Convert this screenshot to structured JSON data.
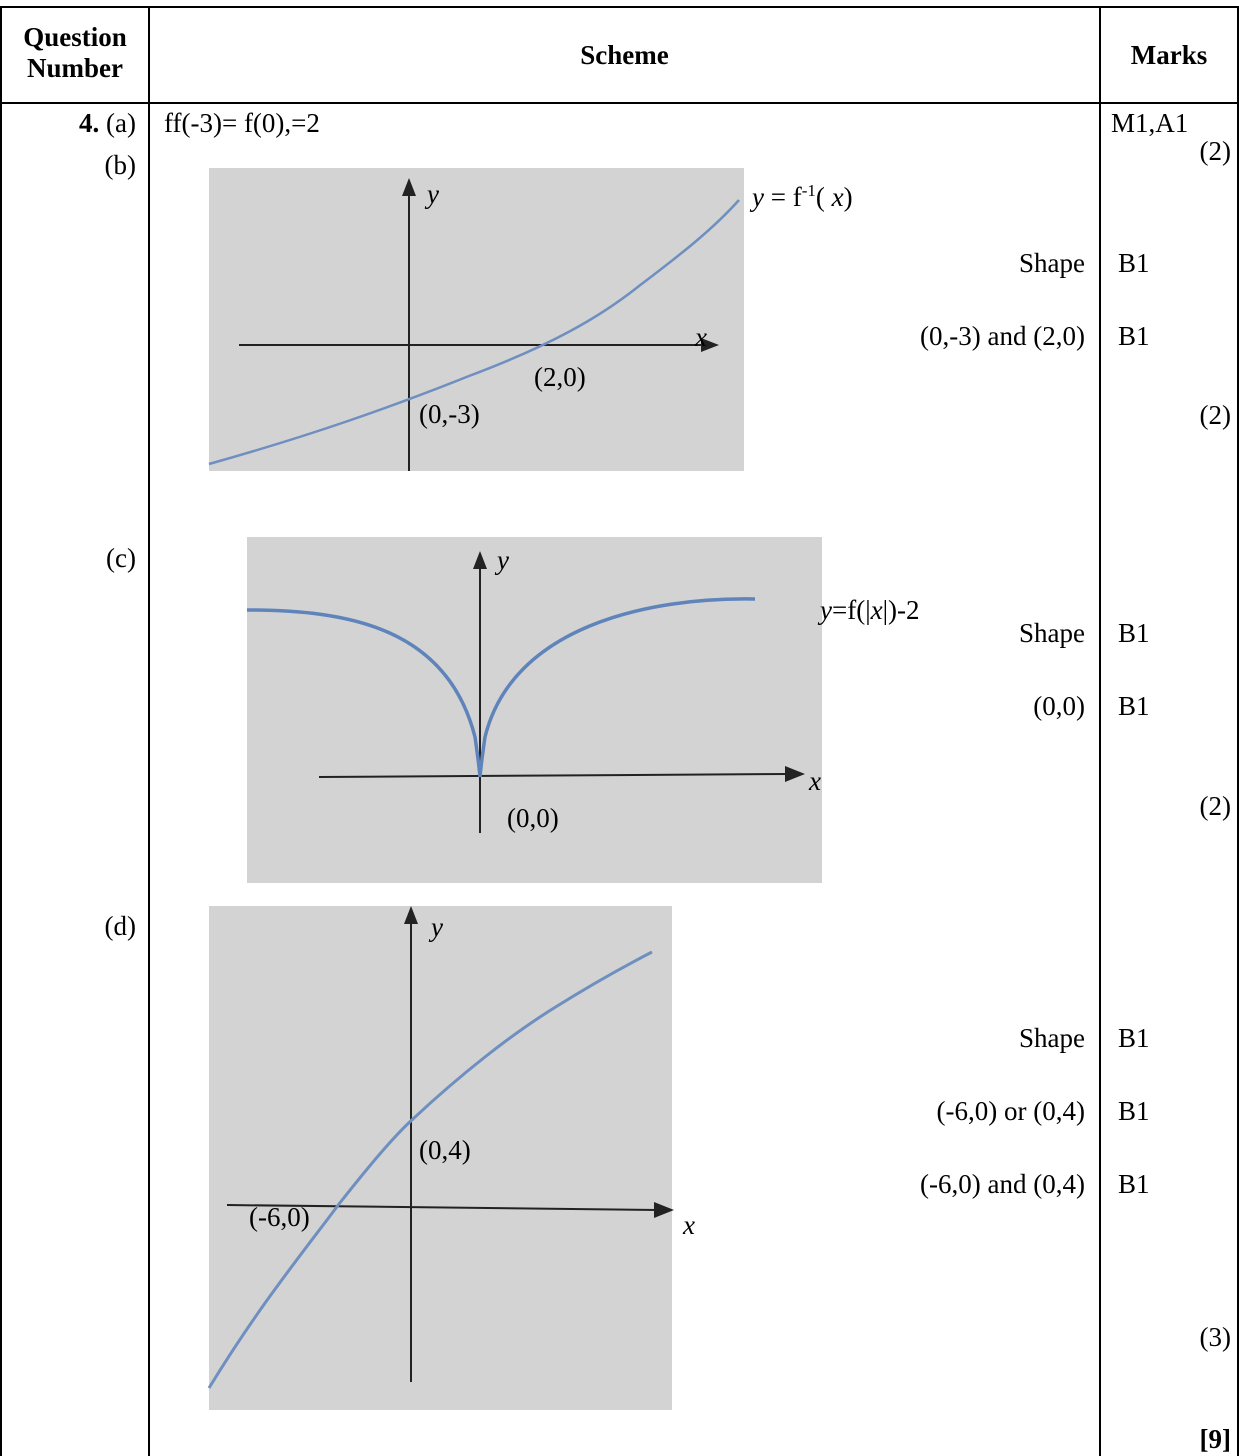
{
  "header": {
    "question_number": [
      "Question",
      "Number"
    ],
    "scheme": "Scheme",
    "marks": "Marks"
  },
  "q4": {
    "number": "4.",
    "parts": {
      "a": {
        "label": "(a)",
        "scheme": "ff(-3)= f(0),=2",
        "marks": "M1,A1",
        "total": "(2)"
      },
      "b": {
        "label": "(b)",
        "curve_label_y": "y",
        "curve_label_eq": " = f",
        "curve_label_sup": "-1",
        "curve_label_open": "( ",
        "curve_label_x": "x",
        "curve_label_close": ")",
        "axis_x": "x",
        "axis_y": "y",
        "point_1": "(2,0)",
        "point_2": "(0,-3)",
        "criteria": [
          {
            "text": "Shape",
            "mark": "B1"
          },
          {
            "text": "(0,-3) and (2,0)",
            "mark": "B1"
          }
        ],
        "total": "(2)"
      },
      "c": {
        "label": "(c)",
        "curve_label_y": "y",
        "curve_label_mid": "=f(|",
        "curve_label_x": "x",
        "curve_label_end": "|)-2",
        "axis_x": "x",
        "axis_y": "y",
        "point_1": "(0,0)",
        "criteria": [
          {
            "text": "Shape",
            "mark": "B1"
          },
          {
            "text": "(0,0)",
            "mark": "B1"
          }
        ],
        "total": "(2)"
      },
      "d": {
        "label": "(d)",
        "axis_x": "x",
        "axis_y": "y",
        "point_1": "(0,4)",
        "point_2": "(-6,0)",
        "criteria": [
          {
            "text": "Shape",
            "mark": "B1"
          },
          {
            "text": "(-6,0) or (0,4)",
            "mark": "B1"
          },
          {
            "text": "(-6,0) and (0,4)",
            "mark": "B1"
          }
        ],
        "total": "(3)"
      }
    },
    "grand_total": "[9]"
  },
  "colors": {
    "curve": "#6e8fbf",
    "graph_background": "#d3d3d3",
    "axis": "#222222"
  }
}
